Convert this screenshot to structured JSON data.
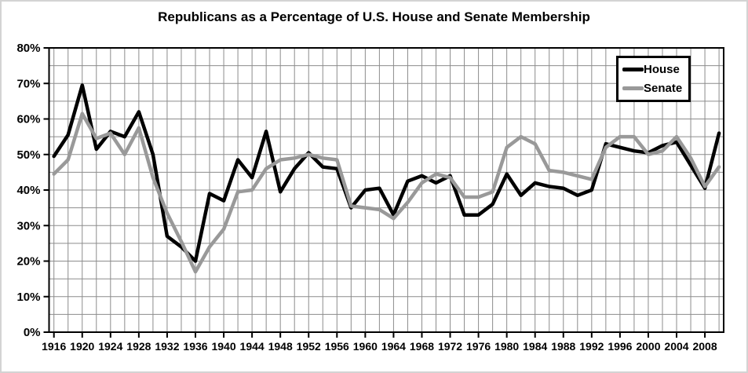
{
  "title": "Republicans as a Percentage of U.S. House and Senate Membership",
  "legend": {
    "items": [
      {
        "label": "House",
        "color": "#000000"
      },
      {
        "label": "Senate",
        "color": "#999999"
      }
    ]
  },
  "chart_data": {
    "type": "line",
    "title": "Republicans as a Percentage of U.S. House and Senate Membership",
    "xlabel": "",
    "ylabel": "",
    "x": [
      1916,
      1918,
      1920,
      1922,
      1924,
      1926,
      1928,
      1930,
      1932,
      1934,
      1936,
      1938,
      1940,
      1942,
      1944,
      1946,
      1948,
      1950,
      1952,
      1954,
      1956,
      1958,
      1960,
      1962,
      1964,
      1966,
      1968,
      1970,
      1972,
      1974,
      1976,
      1978,
      1980,
      1982,
      1984,
      1986,
      1988,
      1990,
      1992,
      1994,
      1996,
      1998,
      2000,
      2002,
      2004,
      2006,
      2008,
      2010
    ],
    "series": [
      {
        "name": "House",
        "color": "#000000",
        "values": [
          49.5,
          55.5,
          69.5,
          51.5,
          56.5,
          55,
          62,
          50,
          27,
          24,
          20,
          39,
          37,
          48.5,
          43.5,
          56.5,
          39.5,
          46,
          50.5,
          46.5,
          46,
          35,
          40,
          40.5,
          33,
          42.5,
          44,
          42,
          44,
          33,
          33,
          36,
          44.5,
          38.5,
          42,
          41,
          40.5,
          38.5,
          40,
          53,
          52,
          51,
          50.5,
          52.5,
          53.5,
          47,
          40.5,
          56
        ]
      },
      {
        "name": "Senate",
        "color": "#999999",
        "values": [
          44.5,
          48.5,
          61.5,
          54.5,
          56,
          50,
          57.5,
          43.5,
          33.5,
          25.5,
          17,
          24,
          29,
          39.5,
          40,
          46,
          48.5,
          49,
          50,
          49,
          48.5,
          35.5,
          35,
          34.5,
          32,
          36.5,
          42,
          44.5,
          43.5,
          38,
          38,
          39.5,
          52,
          55,
          53,
          45.5,
          45,
          44,
          43,
          52,
          55,
          55,
          50,
          51,
          55,
          49,
          41,
          46.5
        ]
      }
    ],
    "xlim": [
      1916,
      2010
    ],
    "ylim": [
      0,
      80
    ],
    "y_tick_labels": [
      "0%",
      "10%",
      "20%",
      "30%",
      "40%",
      "50%",
      "60%",
      "70%",
      "80%"
    ],
    "x_tick_labels": [
      "1916",
      "1920",
      "1924",
      "1928",
      "1932",
      "1936",
      "1940",
      "1944",
      "1948",
      "1952",
      "1956",
      "1960",
      "1964",
      "1968",
      "1972",
      "1976",
      "1980",
      "1984",
      "1988",
      "1992",
      "1996",
      "2000",
      "2004",
      "2008"
    ],
    "grid": {
      "x_interval_years": 2,
      "y_interval_pct": 5,
      "gridline_color": "#8c8c8c"
    },
    "legend_position": "top-right",
    "axis_color": "#000000"
  }
}
